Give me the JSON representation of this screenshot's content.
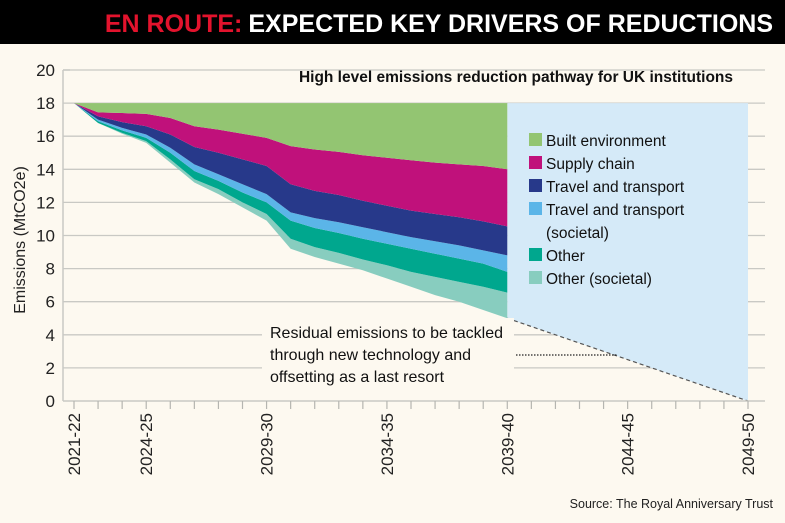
{
  "header": {
    "kicker": "EN ROUTE:",
    "title": "EXPECTED KEY DRIVERS OF REDUCTIONS"
  },
  "source": "Source: The Royal Anniversary Trust",
  "chart_data": {
    "type": "area",
    "stacked": true,
    "title": "High level emissions reduction pathway for UK institutions",
    "ylabel": "Emissions (MtCO2e)",
    "xlabel": "",
    "ylim": [
      0,
      20
    ],
    "yticks": [
      0,
      2,
      4,
      6,
      8,
      10,
      12,
      14,
      16,
      18,
      20
    ],
    "xlim": [
      2021,
      2049
    ],
    "xtick_labels": [
      {
        "x": 2021,
        "label": "2021-22"
      },
      {
        "x": 2024,
        "label": "2024-25"
      },
      {
        "x": 2029,
        "label": "2029-30"
      },
      {
        "x": 2034,
        "label": "2034-35"
      },
      {
        "x": 2039,
        "label": "2039-40"
      },
      {
        "x": 2044,
        "label": "2044-45"
      },
      {
        "x": 2049,
        "label": "2049-50"
      }
    ],
    "grid": true,
    "legend_placement": "right",
    "x": [
      2021,
      2022,
      2023,
      2024,
      2025,
      2026,
      2027,
      2028,
      2029,
      2030,
      2031,
      2032,
      2033,
      2034,
      2035,
      2036,
      2037,
      2038,
      2039
    ],
    "residual": [
      18,
      16.8,
      16.15,
      15.6,
      14.4,
      13.2,
      12.5,
      11.7,
      10.9,
      9.2,
      8.7,
      8.3,
      7.9,
      7.4,
      6.9,
      6.4,
      6.0,
      5.5,
      5.0
    ],
    "series": [
      {
        "name": "Other (societal)",
        "color": "#88cdbf",
        "values": [
          0,
          0,
          0.05,
          0.1,
          0.2,
          0.2,
          0.3,
          0.3,
          0.4,
          0.6,
          0.6,
          0.65,
          0.65,
          0.8,
          0.9,
          1.1,
          1.2,
          1.4,
          1.55
        ]
      },
      {
        "name": "Other",
        "color": "#00a78e",
        "values": [
          0,
          0.1,
          0.15,
          0.2,
          0.4,
          0.5,
          0.5,
          0.6,
          0.7,
          1.1,
          1.15,
          1.2,
          1.25,
          1.3,
          1.4,
          1.4,
          1.4,
          1.4,
          1.25
        ]
      },
      {
        "name": "Travel and transport (societal)",
        "color": "#5bb5e8",
        "values": [
          0,
          0.1,
          0.15,
          0.2,
          0.3,
          0.4,
          0.4,
          0.5,
          0.5,
          0.5,
          0.6,
          0.65,
          0.7,
          0.7,
          0.7,
          0.75,
          0.8,
          0.8,
          1.0
        ]
      },
      {
        "name": "Travel and transport",
        "color": "#27398a",
        "values": [
          0,
          0.2,
          0.35,
          0.5,
          0.8,
          1.05,
          1.3,
          1.5,
          1.7,
          1.7,
          1.65,
          1.65,
          1.6,
          1.6,
          1.6,
          1.65,
          1.7,
          1.75,
          1.75
        ]
      },
      {
        "name": "Supply chain",
        "color": "#c0117b",
        "values": [
          0,
          0.24,
          0.55,
          0.75,
          1.0,
          1.25,
          1.4,
          1.55,
          1.7,
          2.3,
          2.5,
          2.6,
          2.75,
          2.9,
          3.05,
          3.1,
          3.2,
          3.35,
          3.45
        ]
      },
      {
        "name": "Built environment",
        "color": "#93c572",
        "values": [
          0,
          0.56,
          0.6,
          0.65,
          0.9,
          1.4,
          1.6,
          1.85,
          2.1,
          2.6,
          2.8,
          2.95,
          3.15,
          3.3,
          3.45,
          3.6,
          3.7,
          3.8,
          4.0
        ]
      }
    ],
    "legend": [
      {
        "label": "Built environment",
        "color": "#93c572"
      },
      {
        "label": "Supply chain",
        "color": "#c0117b"
      },
      {
        "label": "Travel and transport",
        "color": "#27398a"
      },
      {
        "label": "Travel and transport",
        "label2": "(societal)",
        "color": "#5bb5e8"
      },
      {
        "label": "Other",
        "color": "#00a78e"
      },
      {
        "label": "Other (societal)",
        "color": "#88cdbf"
      }
    ],
    "projection": {
      "from": [
        2039,
        5.0
      ],
      "to": [
        2049,
        0
      ],
      "top": 18,
      "color": "#d5eaf8"
    },
    "annotation": [
      "Residual emissions to be tackled",
      "through new technology and",
      "offsetting as a last resort"
    ]
  },
  "colors": {
    "header_bg": "#000000",
    "kicker": "#e3132d",
    "title": "#ffffff",
    "background": "#fdf9f0"
  }
}
